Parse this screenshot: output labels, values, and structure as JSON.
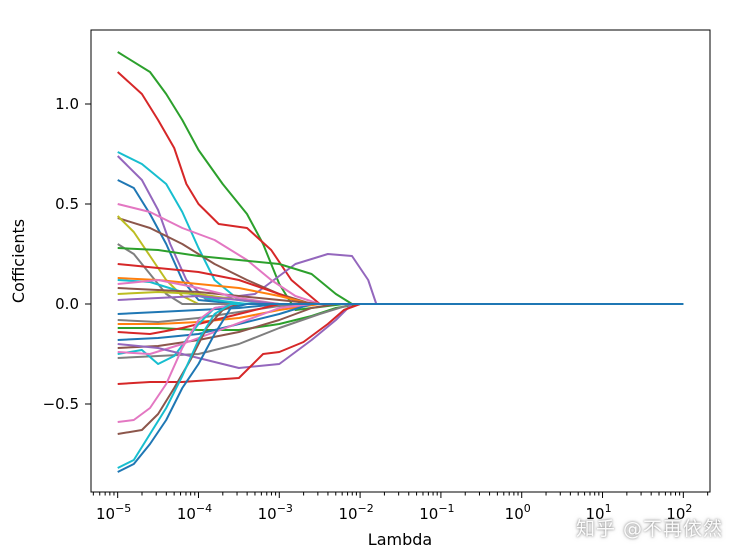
{
  "chart_data": {
    "type": "line",
    "xlabel": "Lambda",
    "ylabel": "Cofficients",
    "xscale": "log",
    "xlim_exp": [
      -5.33,
      2.33
    ],
    "ylim": [
      -0.94,
      1.37
    ],
    "xticks": [
      {
        "exp": -5,
        "label": "10^-5"
      },
      {
        "exp": -4,
        "label": "10^-4"
      },
      {
        "exp": -3,
        "label": "10^-3"
      },
      {
        "exp": -2,
        "label": "10^-2"
      },
      {
        "exp": -1,
        "label": "10^-1"
      },
      {
        "exp": 0,
        "label": "10^0"
      },
      {
        "exp": 1,
        "label": "10^1"
      },
      {
        "exp": 2,
        "label": "10^2"
      }
    ],
    "yticks": [
      -0.5,
      0.0,
      0.5,
      1.0
    ],
    "ytick_labels": [
      "−0.5",
      "0.0",
      "0.5",
      "1.0"
    ],
    "colors": [
      "#1f77b4",
      "#ff7f0e",
      "#2ca02c",
      "#d62728",
      "#9467bd",
      "#8c564b",
      "#e377c2",
      "#7f7f7f",
      "#bcbd22",
      "#17becf"
    ],
    "grid": false,
    "legend": false,
    "series": [
      {
        "color": "#2ca02c",
        "points": [
          [
            -5,
            1.26
          ],
          [
            -4.6,
            1.16
          ],
          [
            -4.4,
            1.05
          ],
          [
            -4.2,
            0.92
          ],
          [
            -4,
            0.77
          ],
          [
            -3.7,
            0.6
          ],
          [
            -3.4,
            0.45
          ],
          [
            -3.2,
            0.3
          ],
          [
            -3,
            0.1
          ],
          [
            -2.8,
            -0.03
          ],
          [
            -2.2,
            0
          ],
          [
            100,
            0
          ]
        ]
      },
      {
        "color": "#d62728",
        "points": [
          [
            -5,
            1.16
          ],
          [
            -4.7,
            1.05
          ],
          [
            -4.5,
            0.92
          ],
          [
            -4.3,
            0.78
          ],
          [
            -4.15,
            0.6
          ],
          [
            -4,
            0.5
          ],
          [
            -3.75,
            0.4
          ],
          [
            -3.4,
            0.38
          ],
          [
            -3.1,
            0.27
          ],
          [
            -2.85,
            0.12
          ],
          [
            -2.5,
            0
          ],
          [
            100,
            0
          ]
        ]
      },
      {
        "color": "#17becf",
        "points": [
          [
            -5,
            0.76
          ],
          [
            -4.7,
            0.7
          ],
          [
            -4.4,
            0.6
          ],
          [
            -4.2,
            0.46
          ],
          [
            -4,
            0.28
          ],
          [
            -3.8,
            0.12
          ],
          [
            -3.5,
            0.02
          ],
          [
            -3.2,
            0
          ],
          [
            100,
            0
          ]
        ]
      },
      {
        "color": "#9467bd",
        "points": [
          [
            -5,
            0.74
          ],
          [
            -4.7,
            0.62
          ],
          [
            -4.5,
            0.47
          ],
          [
            -4.35,
            0.3
          ],
          [
            -4.15,
            0.12
          ],
          [
            -3.9,
            0.02
          ],
          [
            -3.3,
            0.05
          ],
          [
            -2.8,
            0.2
          ],
          [
            -2.4,
            0.25
          ],
          [
            -2.1,
            0.24
          ],
          [
            -1.9,
            0.12
          ],
          [
            -1.8,
            0
          ],
          [
            100,
            0
          ]
        ]
      },
      {
        "color": "#1f77b4",
        "points": [
          [
            -5,
            0.62
          ],
          [
            -4.8,
            0.58
          ],
          [
            -4.6,
            0.45
          ],
          [
            -4.4,
            0.3
          ],
          [
            -4.2,
            0.12
          ],
          [
            -4,
            0.02
          ],
          [
            -3.5,
            0
          ],
          [
            100,
            0
          ]
        ]
      },
      {
        "color": "#e377c2",
        "points": [
          [
            -5,
            0.5
          ],
          [
            -4.6,
            0.46
          ],
          [
            -4.2,
            0.38
          ],
          [
            -3.8,
            0.32
          ],
          [
            -3.4,
            0.22
          ],
          [
            -3.1,
            0.12
          ],
          [
            -2.8,
            0.04
          ],
          [
            -2.5,
            0
          ],
          [
            100,
            0
          ]
        ]
      },
      {
        "color": "#8c564b",
        "points": [
          [
            -5,
            0.43
          ],
          [
            -4.6,
            0.38
          ],
          [
            -4.2,
            0.3
          ],
          [
            -3.8,
            0.2
          ],
          [
            -3.4,
            0.12
          ],
          [
            -3,
            0.05
          ],
          [
            -2.6,
            0
          ],
          [
            100,
            0
          ]
        ]
      },
      {
        "color": "#bcbd22",
        "points": [
          [
            -5,
            0.44
          ],
          [
            -4.8,
            0.36
          ],
          [
            -4.6,
            0.24
          ],
          [
            -4.4,
            0.12
          ],
          [
            -4.2,
            0.04
          ],
          [
            -4,
            0
          ],
          [
            100,
            0
          ]
        ]
      },
      {
        "color": "#7f7f7f",
        "points": [
          [
            -5,
            0.3
          ],
          [
            -4.8,
            0.25
          ],
          [
            -4.6,
            0.15
          ],
          [
            -4.4,
            0.05
          ],
          [
            -4.2,
            0
          ],
          [
            100,
            0
          ]
        ]
      },
      {
        "color": "#2ca02c",
        "points": [
          [
            -5,
            0.28
          ],
          [
            -4.5,
            0.27
          ],
          [
            -4,
            0.24
          ],
          [
            -3.5,
            0.22
          ],
          [
            -3,
            0.2
          ],
          [
            -2.6,
            0.15
          ],
          [
            -2.3,
            0.05
          ],
          [
            -2.1,
            0
          ],
          [
            100,
            0
          ]
        ]
      },
      {
        "color": "#d62728",
        "points": [
          [
            -5,
            0.2
          ],
          [
            -4.5,
            0.18
          ],
          [
            -4,
            0.16
          ],
          [
            -3.5,
            0.12
          ],
          [
            -3,
            0.05
          ],
          [
            -2.7,
            0
          ],
          [
            100,
            0
          ]
        ]
      },
      {
        "color": "#ff7f0e",
        "points": [
          [
            -5,
            0.13
          ],
          [
            -4.5,
            0.12
          ],
          [
            -4,
            0.1
          ],
          [
            -3.5,
            0.08
          ],
          [
            -3,
            0.04
          ],
          [
            -2.6,
            0
          ],
          [
            100,
            0
          ]
        ]
      },
      {
        "color": "#17becf",
        "points": [
          [
            -5,
            0.12
          ],
          [
            -4.6,
            0.11
          ],
          [
            -4.2,
            0.06
          ],
          [
            -3.8,
            0.02
          ],
          [
            -3.4,
            0
          ],
          [
            100,
            0
          ]
        ]
      },
      {
        "color": "#8c564b",
        "points": [
          [
            -5,
            0.08
          ],
          [
            -4.5,
            0.07
          ],
          [
            -4,
            0.06
          ],
          [
            -3.5,
            0.04
          ],
          [
            -3,
            0.02
          ],
          [
            -2.5,
            0
          ],
          [
            100,
            0
          ]
        ]
      },
      {
        "color": "#e377c2",
        "points": [
          [
            -5,
            0.1
          ],
          [
            -4.5,
            0.12
          ],
          [
            -4,
            0.08
          ],
          [
            -3.5,
            0.03
          ],
          [
            -3,
            0
          ],
          [
            100,
            0
          ]
        ]
      },
      {
        "color": "#bcbd22",
        "points": [
          [
            -5,
            0.05
          ],
          [
            -4.5,
            0.06
          ],
          [
            -4,
            0.05
          ],
          [
            -3.5,
            0.02
          ],
          [
            -3,
            0
          ],
          [
            100,
            0
          ]
        ]
      },
      {
        "color": "#9467bd",
        "points": [
          [
            -5,
            0.02
          ],
          [
            -4.5,
            0.03
          ],
          [
            -4,
            0.04
          ],
          [
            -3.5,
            0.02
          ],
          [
            -3,
            0
          ],
          [
            100,
            0
          ]
        ]
      },
      {
        "color": "#1f77b4",
        "points": [
          [
            -5,
            -0.05
          ],
          [
            -4.5,
            -0.04
          ],
          [
            -4,
            -0.03
          ],
          [
            -3.5,
            -0.02
          ],
          [
            -3,
            0
          ],
          [
            100,
            0
          ]
        ]
      },
      {
        "color": "#7f7f7f",
        "points": [
          [
            -5,
            -0.08
          ],
          [
            -4.5,
            -0.09
          ],
          [
            -4,
            -0.07
          ],
          [
            -3.5,
            -0.04
          ],
          [
            -3,
            -0.01
          ],
          [
            -2.7,
            0
          ],
          [
            100,
            0
          ]
        ]
      },
      {
        "color": "#ff7f0e",
        "points": [
          [
            -5,
            -0.1
          ],
          [
            -4.5,
            -0.1
          ],
          [
            -4,
            -0.09
          ],
          [
            -3.5,
            -0.07
          ],
          [
            -3,
            -0.03
          ],
          [
            -2.5,
            0
          ],
          [
            100,
            0
          ]
        ]
      },
      {
        "color": "#2ca02c",
        "points": [
          [
            -5,
            -0.12
          ],
          [
            -4.5,
            -0.12
          ],
          [
            -4,
            -0.13
          ],
          [
            -3.5,
            -0.13
          ],
          [
            -3,
            -0.1
          ],
          [
            -2.6,
            -0.06
          ],
          [
            -2.3,
            -0.02
          ],
          [
            -2,
            0
          ],
          [
            100,
            0
          ]
        ]
      },
      {
        "color": "#d62728",
        "points": [
          [
            -5,
            -0.14
          ],
          [
            -4.6,
            -0.15
          ],
          [
            -4.2,
            -0.12
          ],
          [
            -3.8,
            -0.08
          ],
          [
            -3.4,
            -0.04
          ],
          [
            -3,
            0
          ],
          [
            100,
            0
          ]
        ]
      },
      {
        "color": "#1f77b4",
        "points": [
          [
            -5,
            -0.18
          ],
          [
            -4.5,
            -0.17
          ],
          [
            -4,
            -0.15
          ],
          [
            -3.5,
            -0.1
          ],
          [
            -3,
            -0.05
          ],
          [
            -2.6,
            0
          ],
          [
            100,
            0
          ]
        ]
      },
      {
        "color": "#8c564b",
        "points": [
          [
            -5,
            -0.22
          ],
          [
            -4.5,
            -0.21
          ],
          [
            -4,
            -0.18
          ],
          [
            -3.5,
            -0.14
          ],
          [
            -3,
            -0.08
          ],
          [
            -2.6,
            -0.02
          ],
          [
            -2.3,
            0
          ],
          [
            100,
            0
          ]
        ]
      },
      {
        "color": "#7f7f7f",
        "points": [
          [
            -5,
            -0.27
          ],
          [
            -4.5,
            -0.26
          ],
          [
            -4,
            -0.25
          ],
          [
            -3.5,
            -0.2
          ],
          [
            -3,
            -0.12
          ],
          [
            -2.5,
            -0.05
          ],
          [
            -2.1,
            0
          ],
          [
            100,
            0
          ]
        ]
      },
      {
        "color": "#17becf",
        "points": [
          [
            -5,
            -0.25
          ],
          [
            -4.7,
            -0.23
          ],
          [
            -4.5,
            -0.3
          ],
          [
            -4.3,
            -0.26
          ],
          [
            -4,
            -0.1
          ],
          [
            -3.8,
            -0.02
          ],
          [
            -3.5,
            0
          ],
          [
            100,
            0
          ]
        ]
      },
      {
        "color": "#e377c2",
        "points": [
          [
            -5,
            -0.24
          ],
          [
            -4.6,
            -0.25
          ],
          [
            -4.2,
            -0.2
          ],
          [
            -3.8,
            -0.14
          ],
          [
            -3.4,
            -0.08
          ],
          [
            -3,
            -0.02
          ],
          [
            -2.6,
            0
          ],
          [
            100,
            0
          ]
        ]
      },
      {
        "color": "#9467bd",
        "points": [
          [
            -5,
            -0.2
          ],
          [
            -4.5,
            -0.22
          ],
          [
            -4,
            -0.27
          ],
          [
            -3.5,
            -0.32
          ],
          [
            -3,
            -0.3
          ],
          [
            -2.6,
            -0.18
          ],
          [
            -2.3,
            -0.08
          ],
          [
            -2.1,
            0
          ],
          [
            100,
            0
          ]
        ]
      },
      {
        "color": "#d62728",
        "points": [
          [
            -5,
            -0.4
          ],
          [
            -4.6,
            -0.39
          ],
          [
            -4.2,
            -0.39
          ],
          [
            -3.5,
            -0.37
          ],
          [
            -3.2,
            -0.25
          ],
          [
            -3,
            -0.24
          ],
          [
            -2.7,
            -0.19
          ],
          [
            -2.4,
            -0.1
          ],
          [
            -2.2,
            -0.03
          ],
          [
            -2,
            0
          ],
          [
            100,
            0
          ]
        ]
      },
      {
        "color": "#e377c2",
        "points": [
          [
            -5,
            -0.59
          ],
          [
            -4.8,
            -0.58
          ],
          [
            -4.6,
            -0.52
          ],
          [
            -4.4,
            -0.4
          ],
          [
            -4.2,
            -0.22
          ],
          [
            -4,
            -0.08
          ],
          [
            -3.8,
            -0.02
          ],
          [
            -3.5,
            0
          ],
          [
            100,
            0
          ]
        ]
      },
      {
        "color": "#8c564b",
        "points": [
          [
            -5,
            -0.65
          ],
          [
            -4.7,
            -0.63
          ],
          [
            -4.5,
            -0.55
          ],
          [
            -4.3,
            -0.42
          ],
          [
            -4.1,
            -0.28
          ],
          [
            -3.9,
            -0.12
          ],
          [
            -3.7,
            -0.03
          ],
          [
            -3.5,
            0
          ],
          [
            100,
            0
          ]
        ]
      },
      {
        "color": "#17becf",
        "points": [
          [
            -5,
            -0.82
          ],
          [
            -4.8,
            -0.78
          ],
          [
            -4.6,
            -0.65
          ],
          [
            -4.4,
            -0.52
          ],
          [
            -4.2,
            -0.36
          ],
          [
            -4,
            -0.18
          ],
          [
            -3.8,
            -0.05
          ],
          [
            -3.6,
            0
          ],
          [
            100,
            0
          ]
        ]
      },
      {
        "color": "#1f77b4",
        "points": [
          [
            -5,
            -0.84
          ],
          [
            -4.8,
            -0.8
          ],
          [
            -4.6,
            -0.7
          ],
          [
            -4.4,
            -0.58
          ],
          [
            -4.2,
            -0.42
          ],
          [
            -4,
            -0.3
          ],
          [
            -3.8,
            -0.15
          ],
          [
            -3.6,
            -0.02
          ],
          [
            -3.4,
            0
          ],
          [
            100,
            0
          ]
        ]
      }
    ]
  },
  "watermark": "知乎 @不再依然"
}
